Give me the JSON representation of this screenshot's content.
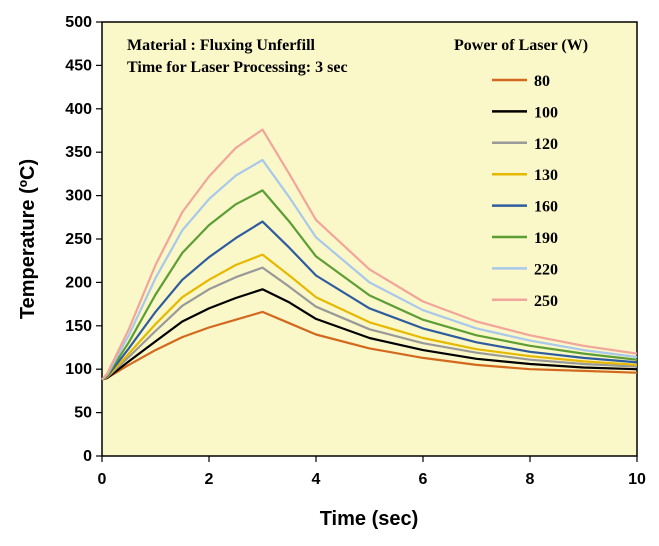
{
  "chart_data": {
    "type": "line",
    "xlabel": "Time (sec)",
    "ylabel": "Temperature (ºC)",
    "xlim": [
      0,
      10
    ],
    "ylim": [
      0,
      500
    ],
    "xticks": [
      0,
      2,
      4,
      6,
      8,
      10
    ],
    "yticks": [
      0,
      50,
      100,
      150,
      200,
      250,
      300,
      350,
      400,
      450,
      500
    ],
    "grid": false,
    "background_color": "#FAF7C8",
    "annotations": [
      "Material : Fluxing Unferfill",
      "Time for Laser Processing: 3 sec"
    ],
    "legend": {
      "title": "Power of Laser (W)",
      "placement": "top-right"
    },
    "x": [
      0,
      0.1,
      0.5,
      1,
      1.5,
      2,
      2.5,
      3,
      3.5,
      4,
      5,
      6,
      7,
      8,
      9,
      10
    ],
    "series": [
      {
        "name": "80",
        "color": "#D2691E",
        "values": [
          88,
          90,
          105,
          122,
          137,
          148,
          157,
          166,
          153,
          140,
          124,
          113,
          105,
          100,
          98,
          96
        ]
      },
      {
        "name": "100",
        "color": "#000000",
        "values": [
          88,
          90,
          109,
          132,
          155,
          170,
          182,
          192,
          177,
          158,
          136,
          122,
          112,
          106,
          102,
          100
        ]
      },
      {
        "name": "120",
        "color": "#999999",
        "values": [
          88,
          91,
          114,
          144,
          173,
          192,
          206,
          217,
          195,
          172,
          146,
          130,
          119,
          111,
          106,
          103
        ]
      },
      {
        "name": "130",
        "color": "#E6B800",
        "values": [
          88,
          91,
          118,
          152,
          183,
          203,
          220,
          232,
          208,
          183,
          154,
          136,
          123,
          115,
          109,
          105
        ]
      },
      {
        "name": "160",
        "color": "#2E5C9E",
        "values": [
          88,
          92,
          124,
          166,
          203,
          229,
          251,
          270,
          240,
          208,
          170,
          147,
          131,
          120,
          113,
          108
        ]
      },
      {
        "name": "190",
        "color": "#5C9E35",
        "values": [
          88,
          93,
          131,
          186,
          234,
          266,
          290,
          306,
          270,
          230,
          185,
          157,
          139,
          127,
          118,
          111
        ]
      },
      {
        "name": "220",
        "color": "#A8C8EC",
        "values": [
          88,
          94,
          139,
          205,
          260,
          296,
          323,
          341,
          298,
          252,
          200,
          168,
          147,
          133,
          122,
          114
        ]
      },
      {
        "name": "250",
        "color": "#F2A59A",
        "values": [
          88,
          95,
          146,
          220,
          281,
          322,
          355,
          376,
          325,
          272,
          215,
          178,
          155,
          139,
          127,
          118
        ]
      }
    ]
  }
}
